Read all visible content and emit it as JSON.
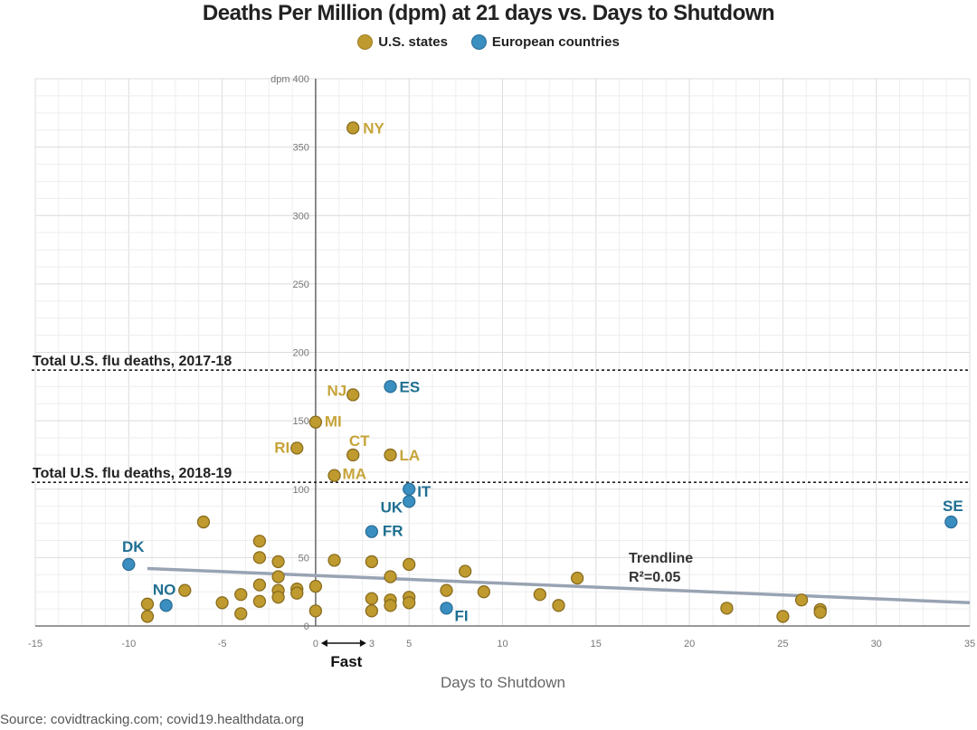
{
  "chart_data": {
    "type": "scatter",
    "title": "Deaths Per Million (dpm) at 21 days vs. Days to Shutdown",
    "xlabel": "Days to Shutdown",
    "ylabel": "dpm",
    "xlim": [
      -15,
      35
    ],
    "ylim": [
      0,
      400
    ],
    "x_ticks": [
      -15,
      -10,
      -5,
      0,
      3,
      5,
      10,
      15,
      20,
      25,
      30,
      35
    ],
    "x_tick_labels": [
      "-15",
      "-10",
      "-5",
      "0",
      "3",
      "5",
      "10",
      "15",
      "20",
      "25",
      "30",
      "35"
    ],
    "y_ticks": [
      0,
      50,
      100,
      150,
      200,
      250,
      300,
      350,
      400
    ],
    "y_tick_labels": [
      "0",
      "50",
      "100",
      "150",
      "200",
      "250",
      "300",
      "350",
      "dpm 400"
    ],
    "grid": true,
    "legend_position": "top-center",
    "legend": [
      {
        "name": "U.S. states",
        "color": "#bf9a2f"
      },
      {
        "name": "European countries",
        "color": "#3a8fc0"
      }
    ],
    "series": [
      {
        "name": "U.S. states",
        "color": "#bf9a2f",
        "label_color": "#c7a43a",
        "points": [
          {
            "x": 2,
            "y": 364,
            "label": "NY"
          },
          {
            "x": 2,
            "y": 169,
            "label": "NJ"
          },
          {
            "x": 0,
            "y": 149,
            "label": "MI"
          },
          {
            "x": -1,
            "y": 130,
            "label": "RI"
          },
          {
            "x": 2,
            "y": 125,
            "label": "CT"
          },
          {
            "x": 4,
            "y": 125,
            "label": "LA"
          },
          {
            "x": 1,
            "y": 110,
            "label": "MA"
          },
          {
            "x": -6,
            "y": 76
          },
          {
            "x": -3,
            "y": 62
          },
          {
            "x": -3,
            "y": 50
          },
          {
            "x": -2,
            "y": 47
          },
          {
            "x": -2,
            "y": 36
          },
          {
            "x": -3,
            "y": 30
          },
          {
            "x": -2,
            "y": 26
          },
          {
            "x": -2,
            "y": 21
          },
          {
            "x": -4,
            "y": 23
          },
          {
            "x": -5,
            "y": 17
          },
          {
            "x": -4,
            "y": 9
          },
          {
            "x": -3,
            "y": 18
          },
          {
            "x": -1,
            "y": 27
          },
          {
            "x": -1,
            "y": 24
          },
          {
            "x": 0,
            "y": 29
          },
          {
            "x": 0,
            "y": 11
          },
          {
            "x": -7,
            "y": 26
          },
          {
            "x": -9,
            "y": 16
          },
          {
            "x": -9,
            "y": 7
          },
          {
            "x": 1,
            "y": 48
          },
          {
            "x": 3,
            "y": 47
          },
          {
            "x": 5,
            "y": 45
          },
          {
            "x": 4,
            "y": 36
          },
          {
            "x": 3,
            "y": 20
          },
          {
            "x": 3,
            "y": 11
          },
          {
            "x": 4,
            "y": 19
          },
          {
            "x": 4,
            "y": 15
          },
          {
            "x": 5,
            "y": 21
          },
          {
            "x": 5,
            "y": 17
          },
          {
            "x": 7,
            "y": 26
          },
          {
            "x": 8,
            "y": 40
          },
          {
            "x": 9,
            "y": 25
          },
          {
            "x": 12,
            "y": 23
          },
          {
            "x": 13,
            "y": 15
          },
          {
            "x": 14,
            "y": 35
          },
          {
            "x": 22,
            "y": 13
          },
          {
            "x": 25,
            "y": 7
          },
          {
            "x": 26,
            "y": 19
          },
          {
            "x": 27,
            "y": 12
          },
          {
            "x": 27,
            "y": 10
          }
        ]
      },
      {
        "name": "European countries",
        "color": "#3a8fc0",
        "label_color": "#1f6f91",
        "points": [
          {
            "x": 4,
            "y": 175,
            "label": "ES"
          },
          {
            "x": 5,
            "y": 100,
            "label": "IT"
          },
          {
            "x": 5,
            "y": 91,
            "label": "UK"
          },
          {
            "x": 3,
            "y": 69,
            "label": "FR"
          },
          {
            "x": 34,
            "y": 76,
            "label": "SE"
          },
          {
            "x": -10,
            "y": 45,
            "label": "DK"
          },
          {
            "x": -8,
            "y": 15,
            "label": "NO"
          },
          {
            "x": 7,
            "y": 13,
            "label": "FI"
          }
        ]
      }
    ],
    "reference_lines": [
      {
        "y": 187,
        "label": "Total U.S. flu deaths, 2017-18"
      },
      {
        "y": 105,
        "label": "Total U.S. flu deaths, 2018-19"
      }
    ],
    "trendline": {
      "x": [
        -9,
        35
      ],
      "y": [
        42,
        17
      ],
      "label": "Trendline",
      "r2_label": "R²=0.05",
      "color": "#98a3b3"
    },
    "annotations": [
      {
        "text": "Fast",
        "x_range": [
          0,
          3
        ]
      }
    ]
  },
  "legend": {
    "us_label": "U.S. states",
    "eu_label": "European countries"
  },
  "source": "Source: covidtracking.com; covid19.healthdata.org"
}
